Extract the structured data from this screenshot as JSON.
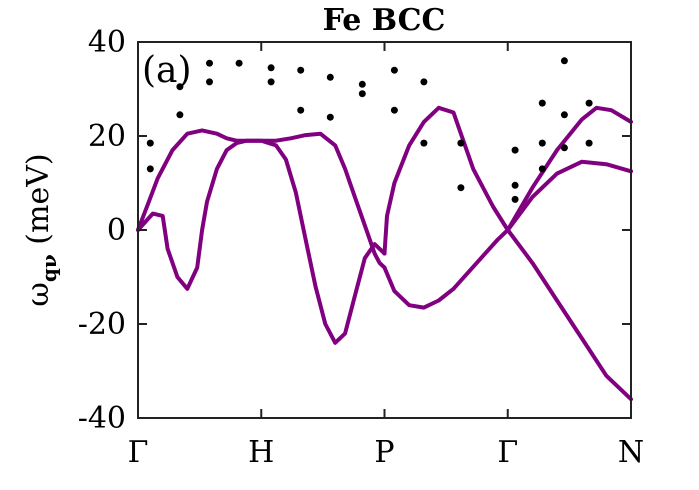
{
  "chart_data": {
    "type": "line",
    "title": "Fe BCC",
    "panel_label": "(a)",
    "ylabel": "ω",
    "ylabel_sub": "qν",
    "ylabel_unit": " (meV)",
    "xlabel": "",
    "xlim": [
      0,
      1
    ],
    "ylim": [
      -40,
      40
    ],
    "y_ticks": [
      -40,
      -20,
      0,
      20,
      40
    ],
    "y_tick_labels": [
      "-40",
      "-20",
      "0",
      "20",
      "40"
    ],
    "x_ticks": [
      0.0,
      0.25,
      0.5,
      0.75,
      1.0
    ],
    "x_tick_labels": [
      "Γ",
      "H",
      "P",
      "Γ",
      "N"
    ],
    "grid": false,
    "line_color": "#800080",
    "point_color": "#000000",
    "series": [
      {
        "x": [
          0.0,
          0.02,
          0.04,
          0.07,
          0.1,
          0.13,
          0.16,
          0.18,
          0.2,
          0.23,
          0.25,
          0.28,
          0.31,
          0.34,
          0.37,
          0.4,
          0.42,
          0.44,
          0.46,
          0.48,
          0.49,
          0.5
        ],
        "values": [
          0,
          5.5,
          11,
          17,
          20.5,
          21.2,
          20.5,
          19.5,
          19.0,
          19.0,
          19.0,
          19.0,
          19.5,
          20.2,
          20.5,
          18,
          13,
          7,
          1,
          -5,
          -7,
          -8
        ]
      },
      {
        "x": [
          0.0,
          0.03,
          0.05,
          0.06,
          0.08,
          0.1,
          0.12,
          0.13,
          0.14,
          0.16,
          0.18,
          0.2,
          0.22,
          0.25,
          0.28,
          0.3,
          0.32,
          0.34,
          0.36,
          0.38,
          0.4,
          0.42,
          0.44,
          0.46,
          0.48,
          0.5
        ],
        "values": [
          0,
          3.5,
          3.0,
          -4,
          -10,
          -12.5,
          -8,
          0,
          6,
          13,
          17,
          18.5,
          19.0,
          19.0,
          18,
          15,
          8,
          -2,
          -12,
          -20,
          -24,
          -22,
          -14,
          -6,
          -3,
          -5
        ]
      },
      {
        "x": [
          0.5,
          0.505,
          0.52,
          0.55,
          0.58,
          0.61,
          0.64,
          0.65,
          0.68,
          0.72,
          0.75
        ],
        "values": [
          -5,
          3,
          10,
          18,
          23,
          26,
          25,
          22,
          13,
          5,
          0
        ]
      },
      {
        "x": [
          0.5,
          0.52,
          0.55,
          0.58,
          0.61,
          0.64,
          0.67,
          0.7,
          0.73,
          0.75
        ],
        "values": [
          -8,
          -13,
          -16,
          -16.5,
          -15,
          -12.5,
          -9,
          -5.5,
          -2,
          0
        ]
      },
      {
        "x": [
          0.75,
          0.8,
          0.85,
          0.9,
          0.95,
          1.0
        ],
        "values": [
          0,
          -7,
          -15,
          -23,
          -31,
          -36
        ]
      },
      {
        "x": [
          0.75,
          0.8,
          0.85,
          0.9,
          0.93,
          0.96,
          1.0
        ],
        "values": [
          0,
          9,
          17,
          23.5,
          26,
          25.5,
          23
        ]
      },
      {
        "x": [
          0.75,
          0.8,
          0.85,
          0.9,
          0.95,
          1.0
        ],
        "values": [
          0,
          7,
          12,
          14.5,
          14,
          12.5
        ]
      }
    ],
    "points": [
      {
        "x": 0.025,
        "y": 13
      },
      {
        "x": 0.025,
        "y": 18.5
      },
      {
        "x": 0.085,
        "y": 24.5
      },
      {
        "x": 0.085,
        "y": 30.5
      },
      {
        "x": 0.145,
        "y": 35.5
      },
      {
        "x": 0.145,
        "y": 31.5
      },
      {
        "x": 0.205,
        "y": 35.5
      },
      {
        "x": 0.27,
        "y": 34.5
      },
      {
        "x": 0.27,
        "y": 31.5
      },
      {
        "x": 0.33,
        "y": 34
      },
      {
        "x": 0.33,
        "y": 25.5
      },
      {
        "x": 0.39,
        "y": 32.5
      },
      {
        "x": 0.39,
        "y": 24
      },
      {
        "x": 0.455,
        "y": 31
      },
      {
        "x": 0.455,
        "y": 29
      },
      {
        "x": 0.52,
        "y": 34
      },
      {
        "x": 0.52,
        "y": 25.5
      },
      {
        "x": 0.58,
        "y": 31.5
      },
      {
        "x": 0.58,
        "y": 18.5
      },
      {
        "x": 0.655,
        "y": 18.5
      },
      {
        "x": 0.655,
        "y": 9
      },
      {
        "x": 0.765,
        "y": 17
      },
      {
        "x": 0.765,
        "y": 9.5
      },
      {
        "x": 0.765,
        "y": 6.5
      },
      {
        "x": 0.82,
        "y": 27
      },
      {
        "x": 0.82,
        "y": 18.5
      },
      {
        "x": 0.82,
        "y": 13
      },
      {
        "x": 0.865,
        "y": 36
      },
      {
        "x": 0.865,
        "y": 24.5
      },
      {
        "x": 0.865,
        "y": 17.5
      },
      {
        "x": 0.915,
        "y": 27
      },
      {
        "x": 0.915,
        "y": 18.5
      }
    ]
  }
}
